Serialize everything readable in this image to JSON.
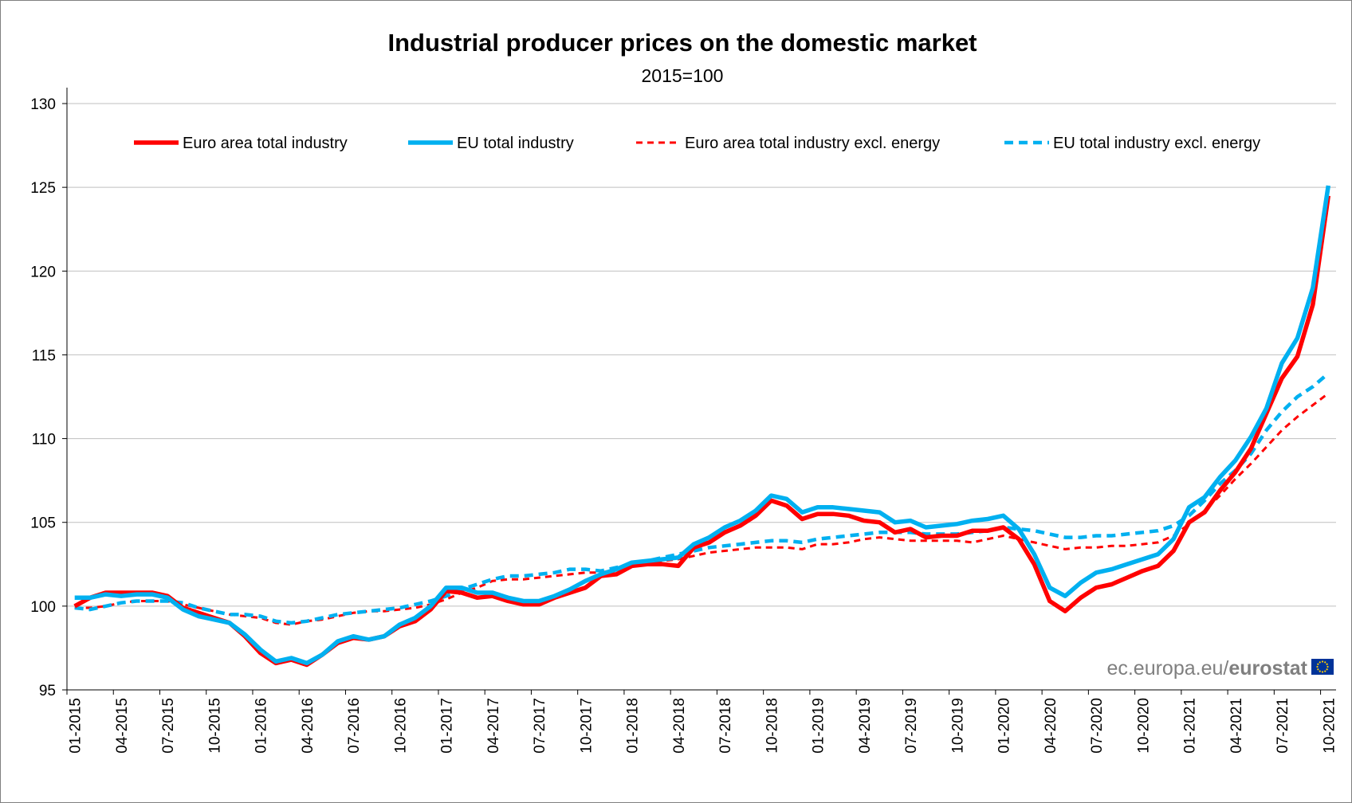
{
  "chart_data": {
    "type": "line",
    "title": "Industrial producer prices on the domestic market",
    "subtitle": "2015=100",
    "xlabel": "",
    "ylabel": "",
    "ylim": [
      95,
      130
    ],
    "yticks": [
      95,
      100,
      105,
      110,
      115,
      120,
      125,
      130
    ],
    "grid": true,
    "legend_position": "top",
    "x_tick_labels": [
      "01-2015",
      "04-2015",
      "07-2015",
      "10-2015",
      "01-2016",
      "04-2016",
      "07-2016",
      "10-2016",
      "01-2017",
      "04-2017",
      "07-2017",
      "10-2017",
      "01-2018",
      "04-2018",
      "07-2018",
      "10-2018",
      "01-2019",
      "04-2019",
      "07-2019",
      "10-2019",
      "01-2020",
      "04-2020",
      "07-2020",
      "10-2020",
      "01-2021",
      "04-2021",
      "07-2021",
      "10-2021"
    ],
    "series": [
      {
        "name": "Euro area total industry",
        "color": "#ff0000",
        "style": "solid",
        "values": [
          100.0,
          100.5,
          100.8,
          100.8,
          100.8,
          100.8,
          100.6,
          99.9,
          99.6,
          99.3,
          99.0,
          98.2,
          97.2,
          96.6,
          96.8,
          96.5,
          97.1,
          97.8,
          98.1,
          98.0,
          98.2,
          98.8,
          99.1,
          99.8,
          100.9,
          100.8,
          100.5,
          100.6,
          100.3,
          100.1,
          100.1,
          100.5,
          100.8,
          101.1,
          101.8,
          101.9,
          102.4,
          102.5,
          102.5,
          102.4,
          103.5,
          103.8,
          104.4,
          104.8,
          105.4,
          106.3,
          106.0,
          105.2,
          105.5,
          105.5,
          105.4,
          105.1,
          105.0,
          104.4,
          104.6,
          104.1,
          104.2,
          104.2,
          104.5,
          104.5,
          104.7,
          104.0,
          102.5,
          100.3,
          99.7,
          100.5,
          101.1,
          101.3,
          101.7,
          102.1,
          102.4,
          103.3,
          105.0,
          105.6,
          106.9,
          108.0,
          109.4,
          111.5,
          113.6,
          114.9,
          118.0,
          124.5
        ]
      },
      {
        "name": "EU total industry",
        "color": "#00b0f0",
        "style": "solid",
        "values": [
          100.5,
          100.5,
          100.7,
          100.6,
          100.7,
          100.7,
          100.5,
          99.8,
          99.4,
          99.2,
          99.0,
          98.3,
          97.4,
          96.7,
          96.9,
          96.6,
          97.1,
          97.9,
          98.2,
          98.0,
          98.2,
          98.9,
          99.3,
          100.0,
          101.1,
          101.1,
          100.8,
          100.8,
          100.5,
          100.3,
          100.3,
          100.6,
          101.0,
          101.5,
          101.9,
          102.2,
          102.6,
          102.7,
          102.8,
          102.9,
          103.7,
          104.1,
          104.7,
          105.1,
          105.7,
          106.6,
          106.4,
          105.6,
          105.9,
          105.9,
          105.8,
          105.7,
          105.6,
          105.0,
          105.1,
          104.7,
          104.8,
          104.9,
          105.1,
          105.2,
          105.4,
          104.6,
          103.1,
          101.1,
          100.6,
          101.4,
          102.0,
          102.2,
          102.5,
          102.8,
          103.1,
          104.0,
          105.9,
          106.5,
          107.7,
          108.7,
          110.1,
          111.8,
          114.5,
          116.0,
          119.0,
          125.1
        ]
      },
      {
        "name": "Euro area total industry excl. energy",
        "color": "#ff0000",
        "style": "dashed",
        "values": [
          99.9,
          99.9,
          100.0,
          100.2,
          100.3,
          100.3,
          100.3,
          100.1,
          99.9,
          99.7,
          99.5,
          99.4,
          99.3,
          99.0,
          98.9,
          99.1,
          99.2,
          99.4,
          99.6,
          99.7,
          99.7,
          99.8,
          99.9,
          100.1,
          100.4,
          100.8,
          101.1,
          101.5,
          101.6,
          101.6,
          101.7,
          101.8,
          101.9,
          102.0,
          102.0,
          102.2,
          102.4,
          102.6,
          102.7,
          102.8,
          103.0,
          103.2,
          103.3,
          103.4,
          103.5,
          103.5,
          103.5,
          103.4,
          103.7,
          103.7,
          103.8,
          104.0,
          104.1,
          104.0,
          103.9,
          103.9,
          103.9,
          103.9,
          103.8,
          104.0,
          104.2,
          104.0,
          103.8,
          103.6,
          103.4,
          103.5,
          103.5,
          103.6,
          103.6,
          103.7,
          103.8,
          104.2,
          104.9,
          105.7,
          106.6,
          107.6,
          108.5,
          109.5,
          110.5,
          111.3,
          112.0,
          112.7
        ]
      },
      {
        "name": "EU total industry excl. energy",
        "color": "#00b0f0",
        "style": "dashed",
        "values": [
          99.9,
          99.8,
          100.0,
          100.2,
          100.3,
          100.3,
          100.3,
          100.2,
          99.9,
          99.7,
          99.5,
          99.5,
          99.4,
          99.1,
          99.0,
          99.1,
          99.3,
          99.5,
          99.6,
          99.7,
          99.8,
          99.9,
          100.1,
          100.3,
          100.6,
          101.0,
          101.3,
          101.6,
          101.8,
          101.8,
          101.9,
          102.0,
          102.2,
          102.2,
          102.1,
          102.3,
          102.5,
          102.7,
          102.9,
          103.1,
          103.3,
          103.5,
          103.6,
          103.7,
          103.8,
          103.9,
          103.9,
          103.8,
          104.0,
          104.1,
          104.2,
          104.3,
          104.4,
          104.4,
          104.4,
          104.3,
          104.3,
          104.3,
          104.4,
          104.5,
          104.7,
          104.6,
          104.5,
          104.3,
          104.1,
          104.1,
          104.2,
          104.2,
          104.3,
          104.4,
          104.5,
          104.8,
          105.4,
          106.3,
          107.3,
          108.1,
          109.1,
          110.5,
          111.6,
          112.5,
          113.1,
          113.9
        ]
      }
    ]
  },
  "footer": {
    "source_prefix": "ec.europa.eu/",
    "source_brand": "eurostat"
  },
  "colors": {
    "flag_blue": "#003399",
    "flag_stars": "#ffcc00",
    "gridline": "#bfbfbf",
    "axis": "#000000"
  }
}
